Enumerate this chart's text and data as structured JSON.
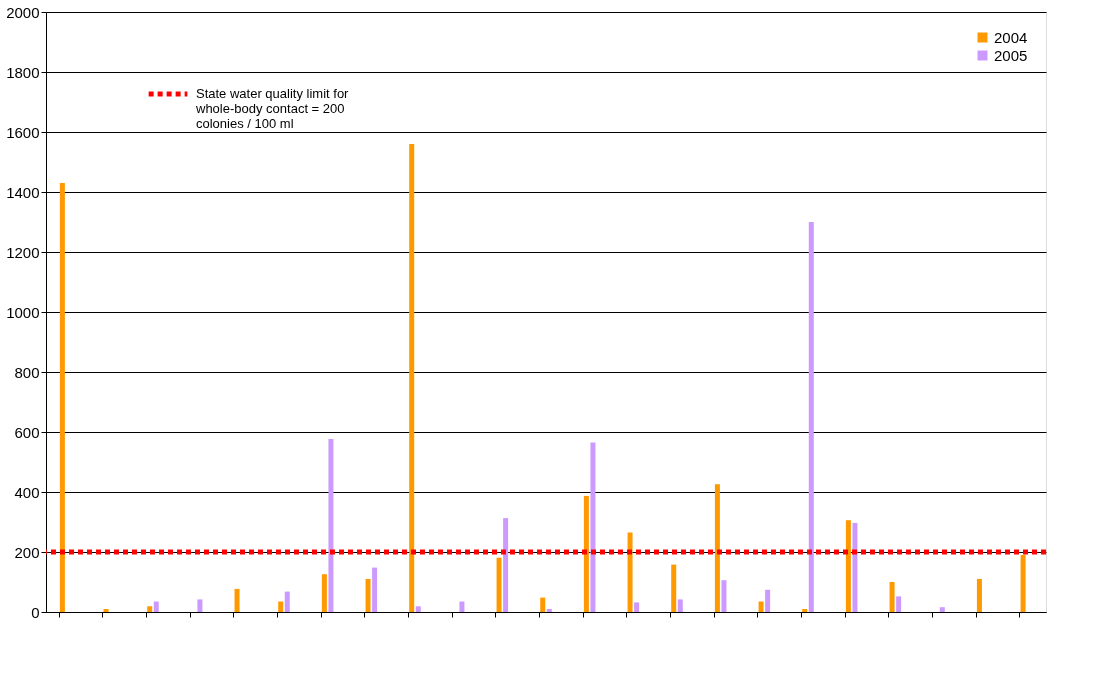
{
  "chart_data": {
    "type": "bar",
    "categories": [
      null,
      null,
      null,
      null,
      null,
      null,
      null,
      null,
      null,
      null,
      null,
      null,
      null,
      null,
      null,
      null,
      null,
      null,
      null,
      null,
      null,
      null,
      null
    ],
    "series": [
      {
        "name": "2004",
        "color": "#ff9900",
        "values": [
          1430,
          10,
          19,
          0,
          77,
          35,
          126,
          110,
          1560,
          0,
          181,
          48,
          387,
          265,
          158,
          426,
          35,
          10,
          306,
          100,
          0,
          110,
          190
        ]
      },
      {
        "name": "2005",
        "color": "#cc99ff",
        "values": [
          0,
          0,
          35,
          42,
          0,
          68,
          577,
          148,
          19,
          35,
          313,
          10,
          565,
          32,
          42,
          106,
          74,
          1300,
          297,
          52,
          16,
          0,
          0
        ]
      }
    ],
    "ylim": [
      0,
      2000
    ],
    "yticks": [
      0,
      200,
      400,
      600,
      800,
      1000,
      1200,
      1400,
      1600,
      1800,
      2000
    ],
    "grid": "y",
    "legend": "top right",
    "tick_labels": "y",
    "ref_lines": [
      {
        "axis": "y",
        "value": 200,
        "label": "State water quality limit for whole-body contact = 200 colonies / 100 ml",
        "color": "#ff0000",
        "line_style": "dotted"
      }
    ]
  }
}
